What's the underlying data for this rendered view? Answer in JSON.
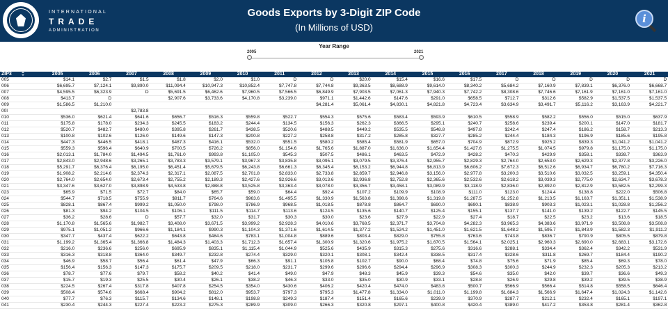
{
  "header": {
    "org_line1": "INTERNATIONAL",
    "org_line2": "TRADE",
    "org_line3": "ADMINISTRATION",
    "title": "Goods Exports by 3-Digit ZIP Code",
    "subtitle": "(In Millions of USD)",
    "brand_color": "#0b3761"
  },
  "slider": {
    "title": "Year Range",
    "start": "2005",
    "end": "2021"
  },
  "table": {
    "zip_header": "ZIP3",
    "years": [
      "2005",
      "2006",
      "2007",
      "2008",
      "2009",
      "2010",
      "2011",
      "2012",
      "2013",
      "2014",
      "2015",
      "2016",
      "2017",
      "2018",
      "2019",
      "2020",
      "2021"
    ],
    "rows": [
      [
        "005",
        "$14.1",
        "$2.7",
        "$1.5",
        "$1.8",
        "$2.0",
        "$1.0",
        "D",
        "D",
        "$20.0",
        "$15.4",
        "$16.6",
        "$17.5",
        "D",
        "D",
        "D",
        "D",
        "D"
      ],
      [
        "006",
        "$6,695.7",
        "$7,124.1",
        "$9,890.0",
        "$11,094.4",
        "$10,947.3",
        "$10,852.4",
        "$7,747.8",
        "$7,744.8",
        "$9,363.5",
        "$8,688.9",
        "$9,614.0",
        "$8,340.2",
        "$5,684.2",
        "$7,160.9",
        "$7,839.1",
        "$6,376.0",
        "$6,668.7"
      ],
      [
        "007",
        "$4,595.5",
        "$6,323.9",
        "D",
        "$5,691.5",
        "$6,462.6",
        "$7,960.5",
        "$7,566.5",
        "$6,849.9",
        "$7,903.5",
        "$7,061.3",
        "$7,940.3",
        "$7,742.2",
        "$8,308.6",
        "$7,746.6",
        "$7,161.9",
        "$7,161.0",
        "$7,161.0"
      ],
      [
        "008",
        "$413.7",
        "D",
        "",
        "$2,907.6",
        "$3,733.6",
        "$4,170.8",
        "$3,239.0",
        "$971.1",
        "$1,442.6",
        "$147.6",
        "$291.0",
        "$658.5",
        "$712.7",
        "$312.6",
        "$582.9",
        "$1,537.5",
        "$1,537.5"
      ],
      [
        "009",
        "$1,586.5",
        "$1,210.0",
        "",
        "",
        "",
        "",
        "",
        "$4,281.4",
        "$5,061.4",
        "$4,830.1",
        "$4,821.8",
        "$4,723.4",
        "$3,634.9",
        "$3,491.7",
        "$5,116.2",
        "$3,163.9",
        "$4,221.7"
      ],
      [
        "00I",
        "",
        "",
        "$2,783.8",
        "",
        "",
        "",
        "",
        "",
        "",
        "",
        "",
        "",
        "",
        "",
        "",
        "",
        ""
      ],
      [
        "010",
        "$536.0",
        "$621.4",
        "$641.6",
        "$656.7",
        "$516.3",
        "$559.8",
        "$522.7",
        "$554.3",
        "$575.6",
        "$583.4",
        "$593.9",
        "$610.5",
        "$558.9",
        "$582.2",
        "$556.0",
        "$515.0",
        "$637.9"
      ],
      [
        "011",
        "$175.8",
        "$178.0",
        "$234.3",
        "$245.5",
        "$183.2",
        "$244.4",
        "$134.5",
        "$156.3",
        "$262.3",
        "$366.5",
        "$295.1",
        "$240.7",
        "$258.6",
        "$239.4",
        "$200.1",
        "$147.0",
        "$181.7"
      ],
      [
        "012",
        "$520.7",
        "$482.7",
        "$480.0",
        "$395.8",
        "$261.7",
        "$438.5",
        "$520.6",
        "$488.5",
        "$449.2",
        "$535.5",
        "$548.8",
        "$497.8",
        "$242.4",
        "$247.4",
        "$186.2",
        "$158.7",
        "$213.3"
      ],
      [
        "013",
        "$100.8",
        "$102.6",
        "$126.0",
        "$149.6",
        "$147.3",
        "$200.8",
        "$227.2",
        "$258.8",
        "$317.2",
        "$285.8",
        "$327.7",
        "$285.2",
        "$244.4",
        "$184.3",
        "$196.9",
        "$185.6",
        "$195.8"
      ],
      [
        "014",
        "$447.3",
        "$446.5",
        "$418.1",
        "$487.3",
        "$416.1",
        "$532.0",
        "$551.5",
        "$580.2",
        "$585.4",
        "$581.9",
        "$657.0",
        "$704.9",
        "$872.9",
        "$925.2",
        "$839.3",
        "$1,041.2",
        "$1,041.2"
      ],
      [
        "015",
        "$559.3",
        "$596.4",
        "$640.9",
        "$700.5",
        "$726.2",
        "$856.0",
        "$1,154.6",
        "$1,765.6",
        "$1,887.0",
        "$1,636.0",
        "$1,654.4",
        "$1,427.6",
        "$1,275.5",
        "$1,074.5",
        "$979.8",
        "$1,175.0",
        "$1,175.0"
      ],
      [
        "016",
        "$2,013.1",
        "$1,784.0",
        "$1,494.5",
        "$1,761.0",
        "$993.8",
        "$1,105.0",
        "$545.3",
        "$507.5",
        "$486.1",
        "$463.5",
        "$472.9",
        "$428.2",
        "$470.3",
        "$429.9",
        "$358.1",
        "$338.7",
        "$363.9"
      ],
      [
        "017",
        "$2,843.0",
        "$2,948.6",
        "$3,265.1",
        "$3,783.3",
        "$3,579.1",
        "$3,967.3",
        "$3,835.8",
        "$3,095.1",
        "$3,079.5",
        "$3,376.4",
        "$2,955.7",
        "$2,829.3",
        "$2,764.0",
        "$2,653.0",
        "$2,629.3",
        "$2,377.8",
        "$3,226.0"
      ],
      [
        "018",
        "$5,291.7",
        "$6,376.4",
        "$6,195.0",
        "$6,451.4",
        "$5,679.5",
        "$6,243.8",
        "$6,661.3",
        "$6,345.4",
        "$6,153.2",
        "$6,944.8",
        "$6,813.9",
        "$6,606.2",
        "$7,672.3",
        "$6,512.6",
        "$6,934.7",
        "$6,780.2",
        "$7,716.3"
      ],
      [
        "019",
        "$1,908.2",
        "$2,214.6",
        "$2,374.3",
        "$2,317.1",
        "$2,087.5",
        "$2,701.8",
        "$2,833.0",
        "$2,733.8",
        "$2,859.7",
        "$2,946.8",
        "$3,156.0",
        "$2,977.8",
        "$3,200.3",
        "$3,510.6",
        "$3,032.5",
        "$3,259.1",
        "$4,350.4"
      ],
      [
        "020",
        "$2,764.0",
        "$2,654.0",
        "$2,673.4",
        "$2,755.2",
        "$2,189.3",
        "$2,427.6",
        "$2,926.6",
        "$3,013.6",
        "$2,936.8",
        "$2,752.8",
        "$2,365.6",
        "$2,532.6",
        "$2,618.2",
        "$3,039.3",
        "$2,775.0",
        "$2,634.7",
        "$3,678.3"
      ],
      [
        "021",
        "$3,347.6",
        "$3,627.0",
        "$3,898.9",
        "$4,533.8",
        "$2,888.8",
        "$3,525.8",
        "$3,363.4",
        "$3,078.0",
        "$3,356.7",
        "$3,458.1",
        "$3,089.9",
        "$3,118.9",
        "$2,836.0",
        "$2,892.0",
        "$2,812.9",
        "$3,582.5",
        "$2,299.3"
      ],
      [
        "023",
        "$65.9",
        "$71.5",
        "$72.7",
        "$84.0",
        "$65.7",
        "$59.0",
        "$64.4",
        "$92.4",
        "$107.2",
        "$109.9",
        "$108.9",
        "$111.0",
        "$123.0",
        "$124.4",
        "$138.8",
        "$222.0",
        "$506.8"
      ],
      [
        "024",
        "$544.7",
        "$718.5",
        "$755.9",
        "$911.7",
        "$764.6",
        "$963.6",
        "$1,495.5",
        "$1,330.9",
        "$1,563.8",
        "$1,398.6",
        "$1,319.8",
        "$1,287.5",
        "$1,252.8",
        "$1,213.5",
        "$1,163.7",
        "$1,351.1",
        "$1,538.9"
      ],
      [
        "025",
        "$828.1",
        "$867.4",
        "$999.2",
        "$1,050.0",
        "$798.0",
        "$786.9",
        "$968.5",
        "$1,018.5",
        "$878.8",
        "$864.7",
        "$690.0",
        "$690.1",
        "$838.9",
        "$903.3",
        "$1,023.1",
        "$1,028.8",
        "$1,256.2"
      ],
      [
        "026",
        "$81.3",
        "$94.2",
        "$104.5",
        "$106.1",
        "$111.5",
        "$114.7",
        "$113.6",
        "$124.5",
        "$135.6",
        "$140.7",
        "$125.4",
        "$155.1",
        "$137.7",
        "$141.0",
        "$139.2",
        "$122.7",
        "$145.5"
      ],
      [
        "027",
        "$36.2",
        "$28.6",
        "D",
        "$57.7",
        "$32.0",
        "$31.7",
        "$30.3",
        "$30.0",
        "$23.6",
        "$27.9",
        "$22.9",
        "$27.4",
        "$18.7",
        "$22.5",
        "$23.2",
        "$13.6",
        "$18.5"
      ],
      [
        "028",
        "$1,170.8",
        "$1,565.6",
        "$1,982.7",
        "$3,408.0",
        "$3,671.5",
        "$3,999.2",
        "$2,928.3",
        "$4,010.6",
        "$3,768.5",
        "$2,371.7",
        "$3,704.8",
        "$4,282.3",
        "$3,965.3",
        "$4,383.6",
        "$3,971.9",
        "$3,508.8",
        "$3,508.8"
      ],
      [
        "029",
        "$975.1",
        "$1,051.2",
        "$966.6",
        "$1,184.1",
        "$990.3",
        "$1,104.3",
        "$1,371.6",
        "$1,614.5",
        "$1,377.2",
        "$1,524.2",
        "$1,451.0",
        "$1,621.5",
        "$1,648.2",
        "$1,595.7",
        "$1,843.9",
        "$1,582.3",
        "$1,911.2"
      ],
      [
        "030",
        "$347.7",
        "$437.4",
        "$622.2",
        "$643.8",
        "$484.6",
        "$783.1",
        "$1,004.8",
        "$889.6",
        "$803.4",
        "$829.0",
        "$755.8",
        "$763.6",
        "$743.8",
        "$836.7",
        "$790.9",
        "$805.5",
        "$879.8"
      ],
      [
        "031",
        "$1,199.2",
        "$1,365.4",
        "$1,366.8",
        "$1,484.3",
        "$1,403.3",
        "$1,712.3",
        "$1,657.4",
        "$1,300.9",
        "$1,320.6",
        "$1,975.2",
        "$1,670.5",
        "$1,564.1",
        "$2,025.1",
        "$2,960.3",
        "$2,690.0",
        "$2,683.1",
        "$3,172.6"
      ],
      [
        "032",
        "$216.0",
        "$236.6",
        "$256.0",
        "$695.9",
        "$835.1",
        "$1,115.4",
        "$1,044.9",
        "$525.6",
        "$435.9",
        "$315.3",
        "$275.6",
        "$316.6",
        "$288.1",
        "$334.4",
        "$362.4",
        "$342.2",
        "$531.9"
      ],
      [
        "033",
        "$316.3",
        "$318.8",
        "$364.0",
        "$349.7",
        "$232.8",
        "$274.4",
        "$329.0",
        "$320.1",
        "$308.1",
        "$342.4",
        "$338.5",
        "$317.4",
        "$328.6",
        "$311.8",
        "$269.7",
        "$184.4",
        "$190.2"
      ],
      [
        "034",
        "$46.9",
        "$58.7",
        "$56.4",
        "$61.4",
        "$47.9",
        "$66.3",
        "$91.1",
        "$105.8",
        "$102.7",
        "$90.0",
        "$68.4",
        "$74.8",
        "$75.6",
        "$71.9",
        "$85.4",
        "$69.3",
        "$78.0"
      ],
      [
        "035",
        "$156.4",
        "$156.3",
        "$147.3",
        "$175.7",
        "$209.5",
        "$218.0",
        "$231.7",
        "$299.6",
        "$296.6",
        "$294.4",
        "$296.9",
        "$308.3",
        "$300.3",
        "$244.9",
        "$232.3",
        "$205.3",
        "$213.2"
      ],
      [
        "036",
        "$78.7",
        "$77.6",
        "$79.7",
        "$58.2",
        "$40.2",
        "$41.4",
        "$49.0",
        "$47.9",
        "$48.3",
        "$45.9",
        "$39.3",
        "$54.6",
        "$35.0",
        "$42.0",
        "$39.7",
        "$36.6",
        "$49.3"
      ],
      [
        "037",
        "$15.7",
        "$19.3",
        "$25.5",
        "$30.4",
        "$26.1",
        "$38.2",
        "$46.3",
        "$33.0",
        "$35.0",
        "$30.9",
        "$33.1",
        "$28.8",
        "$26.9",
        "$29.8",
        "$39.2",
        "$39.5",
        "$38.9"
      ],
      [
        "038",
        "$224.5",
        "$267.4",
        "$317.8",
        "$407.8",
        "$254.5",
        "$354.0",
        "$430.6",
        "$406.2",
        "$420.4",
        "$474.0",
        "$483.8",
        "$500.7",
        "$566.9",
        "$566.4",
        "$514.8",
        "$558.5",
        "$646.4"
      ],
      [
        "039",
        "$508.4",
        "$574.6",
        "$668.4",
        "$904.2",
        "$812.0",
        "$953.7",
        "$797.3",
        "$795.3",
        "$1,477.8",
        "$1,334.0",
        "$1,011.0",
        "$1,199.8",
        "$1,684.3",
        "$1,566.9",
        "$1,647.4",
        "$1,024.3",
        "$1,142.6"
      ],
      [
        "040",
        "$77.7",
        "$76.3",
        "$115.7",
        "$134.6",
        "$148.1",
        "$198.8",
        "$249.3",
        "$187.4",
        "$151.4",
        "$165.6",
        "$239.9",
        "$370.9",
        "$287.7",
        "$212.1",
        "$232.4",
        "$165.1",
        "$197.1"
      ],
      [
        "041",
        "$230.4",
        "$244.3",
        "$227.4",
        "$223.2",
        "$275.3",
        "$289.9",
        "$309.0",
        "$266.3",
        "$320.8",
        "$297.1",
        "$400.8",
        "$420.4",
        "$389.0",
        "$417.2",
        "$353.8",
        "$281.4",
        "$362.8"
      ]
    ]
  }
}
